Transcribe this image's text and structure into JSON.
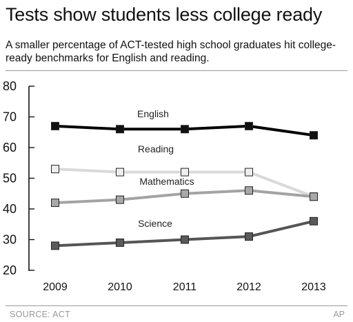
{
  "header": {
    "title": "Tests show students less college ready",
    "subtitle": "A smaller percentage of ACT-tested high school graduates hit college-ready benchmarks for English and reading."
  },
  "footer": {
    "source": "SOURCE: ACT",
    "credit": "AP"
  },
  "chart_data": {
    "type": "line",
    "title": "Tests show students less college ready",
    "x": [
      "2009",
      "2010",
      "2011",
      "2012",
      "2013"
    ],
    "ylim": [
      20,
      80
    ],
    "yticks": [
      20,
      30,
      40,
      50,
      60,
      70,
      80
    ],
    "grid": false,
    "legend": "inline labels",
    "series": [
      {
        "name": "English",
        "values": [
          67,
          66,
          66,
          67,
          64
        ],
        "color": "#000000",
        "marker_fill": "#111111"
      },
      {
        "name": "Reading",
        "values": [
          53,
          52,
          52,
          52,
          44
        ],
        "color": "#d9d9d9",
        "marker_fill": "#eeeeee"
      },
      {
        "name": "Mathematics",
        "values": [
          42,
          43,
          45,
          46,
          44
        ],
        "color": "#a3a3a3",
        "marker_fill": "#a8a8a8"
      },
      {
        "name": "Science",
        "values": [
          28,
          29,
          30,
          31,
          36
        ],
        "color": "#555555",
        "marker_fill": "#5a5a5a"
      }
    ]
  }
}
